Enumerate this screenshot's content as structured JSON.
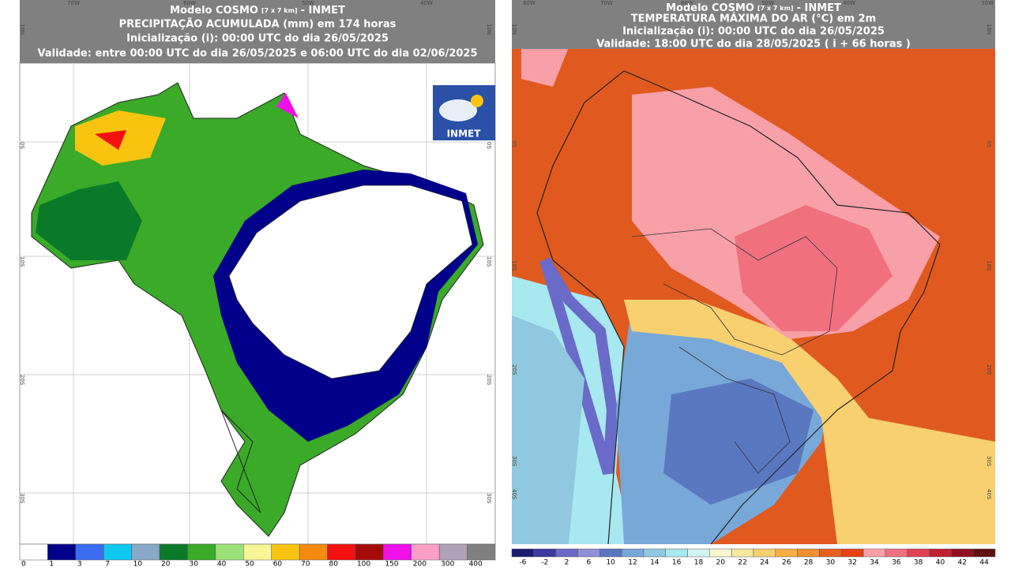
{
  "panels": [
    {
      "header": {
        "model": "Modelo COSMO",
        "resolution": "[7 x 7 km]",
        "source": "- INMET",
        "title": "PRECIPITAÇÃO ACUMULADA (mm) em 174 horas",
        "init": "Inicialização (i): 00:00 UTC do dia 26/05/2025",
        "validity": "Validade: entre 00:00 UTC do dia 26/05/2025 e 06:00 UTC do dia 02/06/2025"
      },
      "logo": "INMET",
      "lon_labels": [
        "70W",
        "60W",
        "50W",
        "40W"
      ],
      "lat_labels": [
        "10N",
        "0S",
        "10S",
        "20S",
        "30S"
      ],
      "colorbar": {
        "labels": [
          0,
          1,
          3,
          7,
          10,
          20,
          30,
          40,
          50,
          60,
          70,
          80,
          100,
          150,
          200,
          300,
          400
        ],
        "colors": [
          "#ffffff",
          "#00008a",
          "#3a6cf0",
          "#10c8f0",
          "#8aa8c8",
          "#0a7a2a",
          "#3aaa28",
          "#9be27a",
          "#f8f598",
          "#f8c410",
          "#f58a10",
          "#f21010",
          "#a50a0a",
          "#f010e8",
          "#f8a0c8",
          "#b0a0b8",
          "#808080"
        ]
      }
    },
    {
      "header": {
        "model": "Modelo COSMO",
        "resolution": "[7 x 7 km]",
        "source": "- INMET",
        "title": "TEMPERATURA MÁXIMA DO AR (°C) em 2m",
        "init": "Inicialização (i): 00:00 UTC do dia 26/05/2025",
        "validity": "Validade: 18:00 UTC do dia 28/05/2025 ( i + 66 horas )"
      },
      "lon_labels": [
        "80W",
        "70W",
        "60W",
        "50W",
        "40W",
        "30W"
      ],
      "lat_labels": [
        "10N",
        "0S",
        "10S",
        "20S",
        "30S",
        "40S"
      ],
      "colorbar": {
        "labels": [
          -6,
          -2,
          2,
          6,
          10,
          12,
          14,
          16,
          18,
          20,
          22,
          24,
          26,
          28,
          30,
          32,
          34,
          36,
          38,
          40,
          42,
          44
        ],
        "colors": [
          "#1a1a70",
          "#3a3aa0",
          "#6a6ac8",
          "#9090d8",
          "#5a78c0",
          "#78a8d8",
          "#90c8e0",
          "#a8e8f0",
          "#d0f4f0",
          "#f8f8d0",
          "#f8e8a0",
          "#f8d070",
          "#f8b040",
          "#f09030",
          "#e86020",
          "#e84010",
          "#f8a0a8",
          "#f07080",
          "#e04050",
          "#c02030",
          "#901020",
          "#601010"
        ]
      }
    }
  ]
}
